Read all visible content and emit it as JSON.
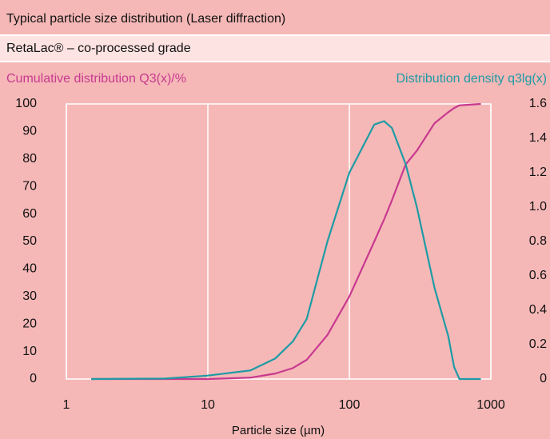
{
  "chart_data": {
    "type": "line",
    "title": "Typical particle size distribution (Laser diffraction)",
    "subtitle": "RetaLac® – co-processed grade",
    "y_label": "Cumulative distribution Q3(x)/%",
    "y2_label": "Distribution density q3lg(x)",
    "x_label": "Particle size (µm)",
    "x_scale": "log",
    "x": [
      1.5,
      5,
      10,
      20,
      30,
      40,
      50,
      70,
      100,
      150,
      176,
      200,
      250,
      300,
      400,
      500,
      550,
      600,
      850
    ],
    "series": [
      {
        "name": "Cumulative distribution Q3(x)/%",
        "color": "#c8398f",
        "axis": "y",
        "values": [
          0,
          0,
          0,
          0.5,
          2,
          4,
          7,
          16,
          30,
          50,
          58,
          65,
          78,
          83,
          93,
          97,
          98.5,
          99.5,
          100
        ]
      },
      {
        "name": "Distribution density q3lg(x)",
        "color": "#1e9ba5",
        "axis": "y2",
        "values": [
          0,
          0.003,
          0.02,
          0.05,
          0.12,
          0.22,
          0.35,
          0.8,
          1.2,
          1.48,
          1.5,
          1.46,
          1.25,
          1.0,
          0.53,
          0.25,
          0.07,
          0,
          0
        ]
      }
    ],
    "xlim": [
      1,
      1000
    ],
    "xticks": [
      1,
      10,
      100,
      1000
    ],
    "ylim": [
      0,
      100
    ],
    "yticks": [
      0,
      10,
      20,
      30,
      40,
      50,
      60,
      70,
      80,
      90,
      100
    ],
    "y2lim": [
      0,
      1.6
    ],
    "y2ticks": [
      0,
      0.2,
      0.4,
      0.6,
      0.8,
      {
        "value": 1,
        "label": "1.0"
      },
      1.2,
      1.4,
      1.6
    ],
    "grid": true
  }
}
